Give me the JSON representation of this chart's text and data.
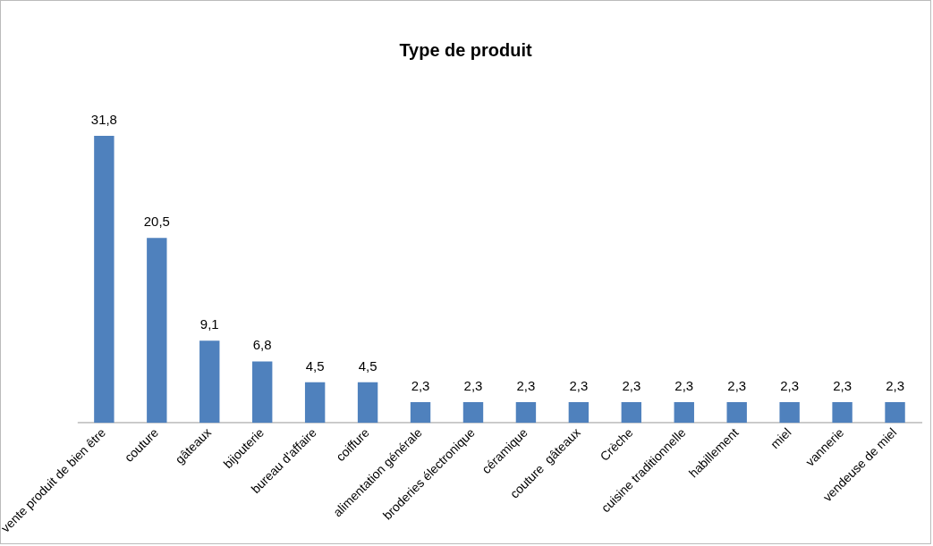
{
  "chart_data": {
    "type": "bar",
    "title": "Type de produit",
    "categories": [
      "vente produit de bien être",
      "couture",
      "gâteaux",
      "bijouterie",
      "bureau d'affaire",
      "coiffure",
      "alimentation générale",
      "broderies électronique",
      "céramique",
      "couture  gâteaux",
      "Crèche",
      "cuisine traditionnelle",
      "habillement",
      "miel",
      "vannerie",
      "vendeuse de miel"
    ],
    "values": [
      31.8,
      20.5,
      9.1,
      6.8,
      4.5,
      4.5,
      2.3,
      2.3,
      2.3,
      2.3,
      2.3,
      2.3,
      2.3,
      2.3,
      2.3,
      2.3
    ],
    "value_labels": [
      "31,8",
      "20,5",
      "9,1",
      "6,8",
      "4,5",
      "4,5",
      "2,3",
      "2,3",
      "2,3",
      "2,3",
      "2,3",
      "2,3",
      "2,3",
      "2,3",
      "2,3",
      "2,3"
    ],
    "color": "#4f81bd",
    "grid": false,
    "legend": false,
    "tick_labels": "x"
  }
}
